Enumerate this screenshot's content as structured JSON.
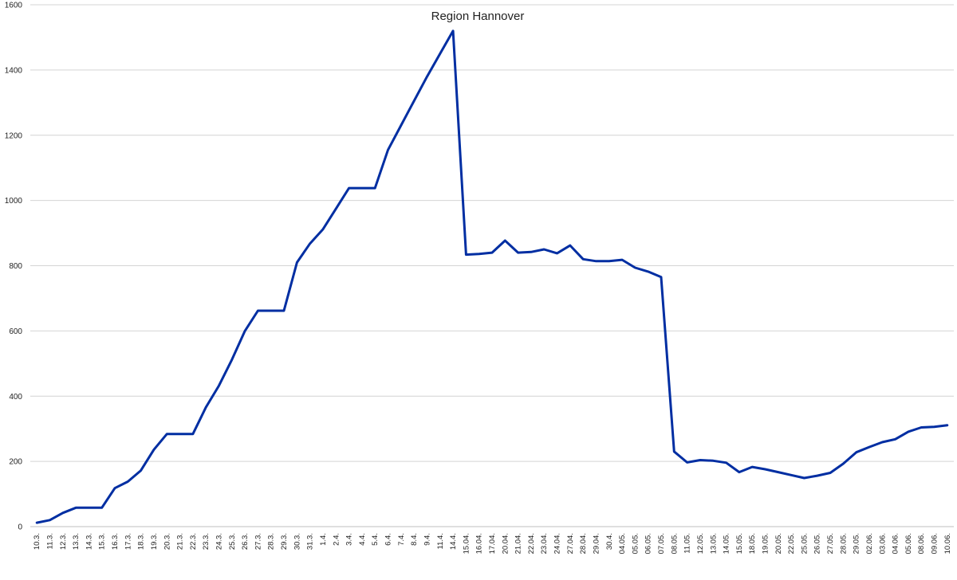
{
  "chart_data": {
    "type": "line",
    "title": "Region Hannover",
    "xlabel": "",
    "ylabel": "",
    "ylim": [
      0,
      1600
    ],
    "yticks": [
      0,
      200,
      400,
      600,
      800,
      1000,
      1200,
      1400,
      1600
    ],
    "grid": true,
    "legend": "none",
    "line_color": "#002ea2",
    "categories": [
      "10.3.",
      "11.3.",
      "12.3.",
      "13.3.",
      "14.3.",
      "15.3.",
      "16.3.",
      "17.3.",
      "18.3.",
      "19.3.",
      "20.3.",
      "21.3.",
      "22.3.",
      "23.3.",
      "24.3.",
      "25.3.",
      "26.3.",
      "27.3.",
      "28.3.",
      "29.3.",
      "30.3.",
      "31.3.",
      "1.4.",
      "2.4.",
      "3.4.",
      "4.4.",
      "5.4.",
      "6.4.",
      "7.4.",
      "8.4.",
      "9.4.",
      "11.4.",
      "14.4.",
      "15.04.",
      "16.04.",
      "17.04.",
      "20.04.",
      "21.04.",
      "22.04.",
      "23.04.",
      "24.04.",
      "27.04.",
      "28.04.",
      "29.04.",
      "30.4.",
      "04.05.",
      "05.05.",
      "06.05.",
      "07.05.",
      "08.05.",
      "11.05.",
      "12.05.",
      "13.05.",
      "14.05.",
      "15.05.",
      "18.05.",
      "19.05.",
      "20.05.",
      "22.05.",
      "25.05.",
      "26.05.",
      "27.05.",
      "28.05.",
      "29.05.",
      "02.06.",
      "03.06.",
      "04.06.",
      "05.06.",
      "08.06.",
      "09.06.",
      "10.06."
    ],
    "values": [
      12,
      20,
      42,
      58,
      58,
      58,
      118,
      138,
      172,
      236,
      284,
      284,
      284,
      366,
      432,
      512,
      600,
      662,
      662,
      662,
      810,
      868,
      912,
      975,
      1038,
      1038,
      1038,
      1155,
      1230,
      1305,
      1380,
      1450,
      1520,
      834,
      836,
      840,
      877,
      840,
      842,
      850,
      838,
      862,
      820,
      814,
      814,
      818,
      794,
      782,
      765,
      230,
      197,
      204,
      202,
      196,
      167,
      183,
      176,
      167,
      158,
      149,
      156,
      165,
      193,
      228,
      244,
      259,
      268,
      291,
      304,
      306,
      311
    ]
  }
}
